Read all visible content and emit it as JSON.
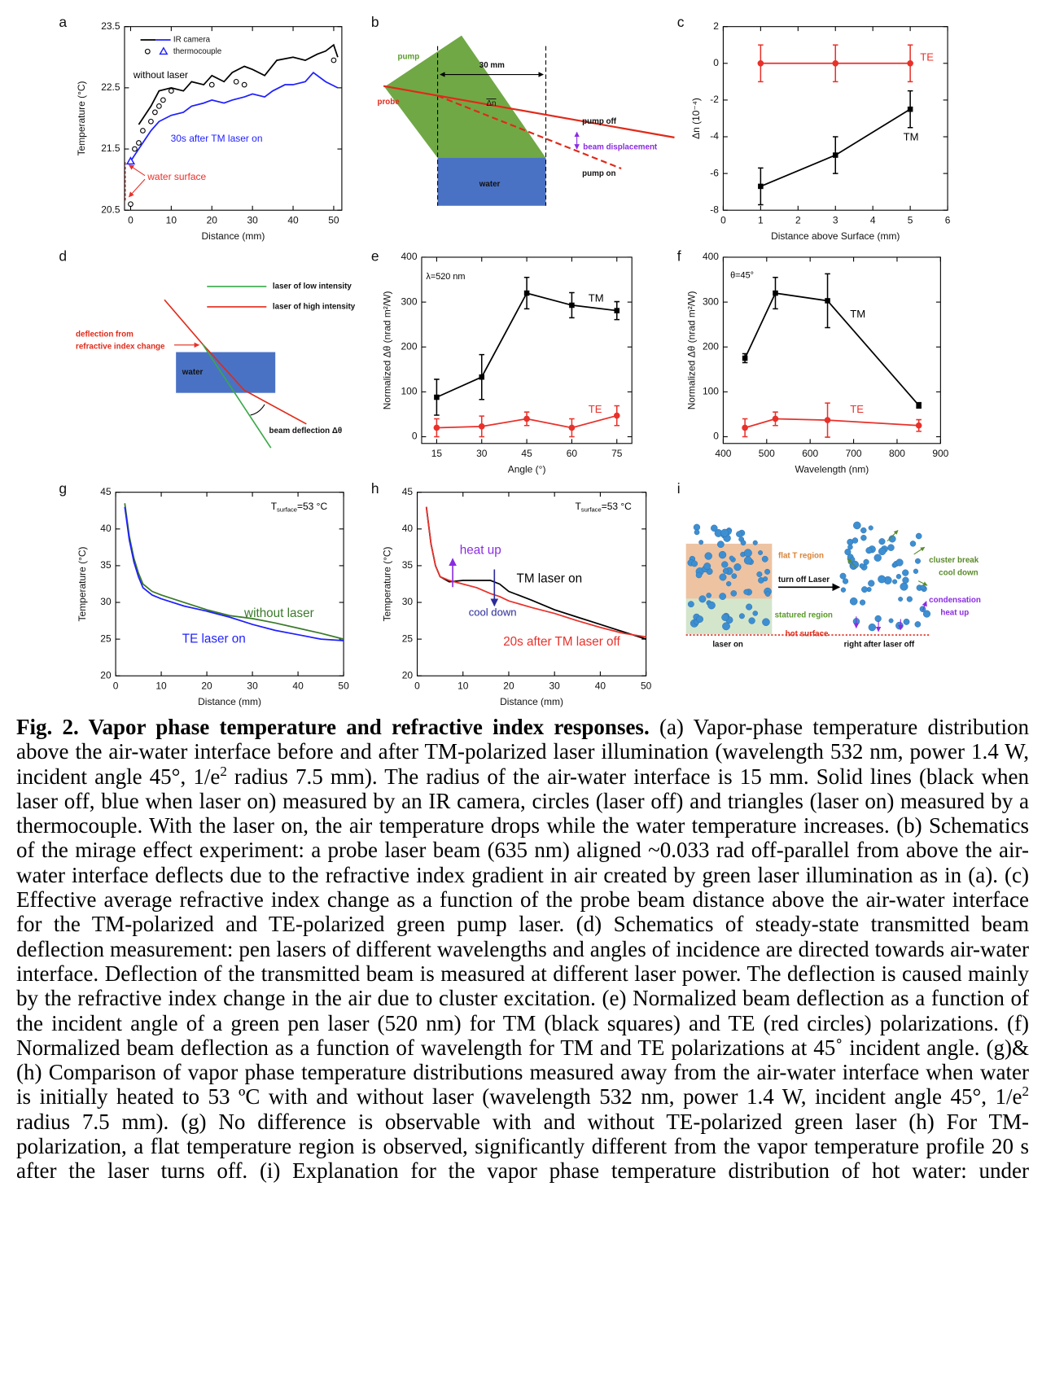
{
  "chart_data": [
    {
      "type": "line",
      "label": "a",
      "xlabel": "Distance (mm)",
      "ylabel": "Temperature (°C)",
      "xlim": [
        -1.5,
        52
      ],
      "ylim": [
        20.5,
        23.5
      ],
      "xticks": [
        0,
        10,
        20,
        30,
        40,
        50
      ],
      "yticks": [
        20.5,
        21.5,
        22.5,
        23.5
      ],
      "legend": [
        "IR camera",
        "thermocouple"
      ],
      "series": [
        {
          "color": "#000000",
          "line": true,
          "x": [
            2,
            3,
            5,
            7,
            10,
            13,
            15,
            18,
            20,
            23,
            25,
            28,
            30,
            33,
            36,
            40,
            43,
            46,
            48,
            50,
            51
          ],
          "values": [
            21.9,
            22.0,
            22.2,
            22.45,
            22.5,
            22.45,
            22.6,
            22.55,
            22.7,
            22.6,
            22.75,
            22.85,
            22.8,
            22.7,
            22.95,
            23.0,
            22.95,
            23.05,
            23.1,
            23.2,
            23.0
          ]
        },
        {
          "color": "#1f1fff",
          "line": true,
          "x": [
            0,
            1,
            3,
            5,
            7,
            10,
            13,
            15,
            18,
            20,
            23,
            25,
            28,
            30,
            33,
            35,
            38,
            40,
            43,
            45,
            48,
            51
          ],
          "values": [
            21.3,
            21.4,
            21.6,
            21.8,
            21.95,
            22.05,
            22.1,
            22.2,
            22.25,
            22.3,
            22.25,
            22.3,
            22.35,
            22.4,
            22.35,
            22.45,
            22.55,
            22.55,
            22.6,
            22.75,
            22.6,
            22.5
          ]
        },
        {
          "color": "#000000",
          "line": false,
          "marker": "circle",
          "x": [
            0,
            1,
            2,
            3,
            5,
            6,
            7,
            8,
            10,
            20,
            26,
            28,
            50
          ],
          "values": [
            20.6,
            21.5,
            21.6,
            21.8,
            21.95,
            22.1,
            22.2,
            22.3,
            22.45,
            22.55,
            22.6,
            22.55,
            22.95
          ]
        },
        {
          "color": "#1f1fff",
          "line": false,
          "marker": "triangle",
          "x": [
            0
          ],
          "values": [
            21.3
          ]
        }
      ],
      "annotations": [
        {
          "text": "without laser",
          "color": "#000000"
        },
        {
          "text": "30s after TM laser on",
          "color": "#1f1fff"
        },
        {
          "text": "water surface",
          "color": "#e8312a"
        }
      ]
    },
    {
      "type": "errorbar",
      "label": "c",
      "xlabel": "Distance above Surface (mm)",
      "ylabel": "Δn (10⁻⁴)",
      "xlim": [
        0,
        6
      ],
      "ylim": [
        -8,
        2
      ],
      "xticks": [
        0,
        1,
        2,
        3,
        4,
        5,
        6
      ],
      "yticks": [
        -8,
        -6,
        -4,
        -2,
        0,
        2
      ],
      "series": [
        {
          "name": "TE",
          "color": "#e8312a",
          "line": true,
          "marker": "circle",
          "x": [
            1,
            3,
            5
          ],
          "values": [
            0,
            0,
            0
          ],
          "errors": [
            1,
            1,
            1
          ]
        },
        {
          "name": "TM",
          "color": "#000000",
          "line": true,
          "marker": "square",
          "x": [
            1,
            3,
            5
          ],
          "values": [
            -6.7,
            -5,
            -2.5
          ],
          "errors": [
            1,
            1,
            1
          ]
        }
      ],
      "annotations": [
        {
          "text": "TE",
          "color": "#e8312a"
        },
        {
          "text": "TM",
          "color": "#000000"
        }
      ]
    },
    {
      "type": "errorbar",
      "label": "e",
      "xlabel": "Angle (°)",
      "ylabel": "Normalized Δθ (nrad m²/W)",
      "xlim": [
        10,
        80
      ],
      "ylim": [
        -15,
        400
      ],
      "xticks": [
        15,
        30,
        45,
        60,
        75
      ],
      "yticks": [
        0,
        100,
        200,
        300,
        400
      ],
      "series": [
        {
          "name": "TM",
          "color": "#000000",
          "line": true,
          "marker": "square",
          "x": [
            15,
            30,
            45,
            60,
            75
          ],
          "values": [
            88,
            133,
            320,
            293,
            281
          ],
          "errors": [
            40,
            50,
            35,
            28,
            20
          ]
        },
        {
          "name": "TE",
          "color": "#e8312a",
          "line": true,
          "marker": "circle",
          "x": [
            15,
            30,
            45,
            60,
            75
          ],
          "values": [
            20,
            23,
            40,
            20,
            47
          ],
          "errors": [
            20,
            23,
            15,
            20,
            22
          ]
        }
      ],
      "annotations": [
        {
          "text": "λ=520 nm",
          "color": "#000000"
        },
        {
          "text": "TM",
          "color": "#000000"
        },
        {
          "text": "TE",
          "color": "#e8312a"
        }
      ]
    },
    {
      "type": "errorbar",
      "label": "f",
      "xlabel": "Wavelength (nm)",
      "ylabel": "Normalized Δθ (nrad m²/W)",
      "xlim": [
        400,
        900
      ],
      "ylim": [
        -15,
        400
      ],
      "xticks": [
        400,
        500,
        600,
        700,
        800,
        900
      ],
      "yticks": [
        0,
        100,
        200,
        300,
        400
      ],
      "series": [
        {
          "name": "TM",
          "color": "#000000",
          "line": true,
          "marker": "square",
          "x": [
            450,
            520,
            640,
            850
          ],
          "values": [
            175,
            320,
            303,
            70
          ],
          "errors": [
            10,
            35,
            60,
            6
          ]
        },
        {
          "name": "TE",
          "color": "#e8312a",
          "line": true,
          "marker": "circle",
          "x": [
            450,
            520,
            640,
            850
          ],
          "values": [
            20,
            40,
            37,
            25
          ],
          "errors": [
            20,
            15,
            38,
            13
          ]
        }
      ],
      "annotations": [
        {
          "text": "θ=45°",
          "color": "#000000"
        },
        {
          "text": "TM",
          "color": "#000000"
        },
        {
          "text": "TE",
          "color": "#e8312a"
        }
      ]
    },
    {
      "type": "line",
      "label": "g",
      "xlabel": "Distance (mm)",
      "ylabel": "Temperature (°C)",
      "xlim": [
        0,
        50
      ],
      "ylim": [
        20,
        45
      ],
      "xticks": [
        0,
        10,
        20,
        30,
        40,
        50
      ],
      "yticks": [
        20,
        25,
        30,
        35,
        40,
        45
      ],
      "series": [
        {
          "name": "without laser",
          "color": "#3a7a2a",
          "line": true,
          "x": [
            2,
            3,
            4,
            5,
            6,
            8,
            10,
            15,
            20,
            25,
            30,
            35,
            40,
            45,
            50
          ],
          "values": [
            43.5,
            39,
            36,
            34,
            32.5,
            31.5,
            31,
            30,
            29,
            28.2,
            27.8,
            27.2,
            26.5,
            25.8,
            25
          ]
        },
        {
          "name": "TE laser on",
          "color": "#1f1fff",
          "line": true,
          "x": [
            2,
            3,
            4,
            5,
            6,
            8,
            10,
            15,
            20,
            25,
            30,
            35,
            40,
            45,
            50
          ],
          "values": [
            43,
            38.5,
            35.5,
            33.5,
            32,
            31,
            30.5,
            29.5,
            28.8,
            28,
            27,
            26.2,
            25.6,
            25,
            24.8
          ]
        }
      ],
      "annotations": [
        {
          "text": "T",
          "sub": "surface",
          "rest": "=53 °C",
          "color": "#000000"
        },
        {
          "text": "without laser",
          "color": "#3a7a2a"
        },
        {
          "text": "TE laser on",
          "color": "#1f1fff"
        }
      ]
    },
    {
      "type": "line",
      "label": "h",
      "xlabel": "Distance (mm)",
      "ylabel": "Temperature (°C)",
      "xlim": [
        0,
        50
      ],
      "ylim": [
        20,
        45
      ],
      "xticks": [
        0,
        10,
        20,
        30,
        40,
        50
      ],
      "yticks": [
        20,
        25,
        30,
        35,
        40,
        45
      ],
      "series": [
        {
          "name": "TM laser on",
          "color": "#000000",
          "line": true,
          "x": [
            2,
            3,
            4,
            5,
            7,
            10,
            13,
            16,
            18,
            20,
            25,
            30,
            35,
            40,
            45,
            50
          ],
          "values": [
            43,
            38,
            35,
            33.5,
            32.8,
            33,
            33,
            33,
            32.5,
            31.5,
            30.3,
            29,
            28,
            27,
            26,
            25
          ]
        },
        {
          "name": "20s after TM laser off",
          "color": "#e8312a",
          "line": true,
          "x": [
            2,
            3,
            4,
            5,
            7,
            10,
            13,
            16,
            18,
            20,
            25,
            30,
            35,
            40,
            45,
            50
          ],
          "values": [
            43,
            38,
            35,
            33.5,
            33,
            32.5,
            32,
            31.2,
            30.8,
            30.2,
            29.3,
            28.5,
            27.5,
            26.6,
            25.8,
            25.3
          ]
        }
      ],
      "annotations": [
        {
          "text": "T",
          "sub": "surface",
          "rest": "=53 °C",
          "color": "#000000"
        },
        {
          "text": "heat up",
          "color": "#8a2be2"
        },
        {
          "text": "TM laser on",
          "color": "#000000"
        },
        {
          "text": "cool down",
          "color": "#2b2b9a"
        },
        {
          "text": "20s after TM laser off",
          "color": "#e8312a"
        }
      ]
    }
  ],
  "diagrams": {
    "b": {
      "label": "b",
      "pump": "pump",
      "probe": "probe",
      "distance": "30 mm",
      "delta_n": "Δn",
      "pump_off": "pump off",
      "beam_displacement": "beam displacement",
      "pump_on": "pump on",
      "water": "water"
    },
    "d": {
      "label": "d",
      "low": "laser of low intensity",
      "high": "laser of high intensity",
      "deflection_1": "deflection from",
      "deflection_2": "refractive index change",
      "water": "water",
      "beam_deflection": "beam deflection Δθ"
    },
    "i": {
      "label": "i",
      "flat": "flat T region",
      "turn_off": "turn off Laser",
      "statured": "statured region",
      "hot_surface": "hot surface",
      "laser_on": "laser on",
      "after": "right after laser off",
      "break_1": "cluster break",
      "break_2": "cool down",
      "cond_1": "condensation",
      "cond_2": "heat up"
    }
  },
  "caption": [
    {
      "text": "Fig. 2. Vapor phase temperature and refractive index responses."
    },
    {
      "text": " (a) Vapor-phase temperature distribution above the air-water interface before and after TM-polarized laser illumination (wavelength 532 nm, power 1.4 W, incident angle 45°, 1/e"
    },
    {
      "text": "2"
    },
    {
      "text": " radius 7.5 mm). The radius of the air-water interface is 15 mm. Solid lines (black when laser off, blue when laser on) measured by an IR camera, circles (laser off) and triangles (laser on) measured by a thermocouple. With the laser on, the air temperature drops while the water temperature increases. (b) Schematics of the mirage effect experiment: a probe laser beam (635 nm) aligned ~0.033 rad off-parallel from above the air-water interface deflects due to the refractive index gradient in air created by green laser illumination as in (a). (c) Effective average refractive index change as a function of the probe beam distance above the air-water interface for the TM-polarized and TE-polarized green pump laser. (d) Schematics of steady-state transmitted beam deflection measurement: pen lasers of different wavelengths and angles of incidence are directed towards air-water interface. Deflection of the transmitted beam is measured at different laser power. The deflection is caused mainly by the refractive index change in the air due to cluster excitation. (e) Normalized beam deflection as a function of the incident angle of a green pen laser (520 nm) for TM (black squares) and TE (red circles) polarizations. (f) Normalized beam deflection as a function of wavelength for TM and TE polarizations at 45˚ incident angle. (g)&(h) Comparison of vapor phase temperature distributions measured away from the air-water interface when water is initially heated to 53 ºC with and without laser (wavelength 532 nm, power 1.4 W, incident angle 45°, 1/e"
    },
    {
      "text": "2"
    },
    {
      "text": " radius 7.5 mm). (g) No difference is observable with and without TE-polarized green laser (h) For TM-polarization, a flat temperature region is observed, significantly different from the vapor temperature profile 20 s after the laser turns off. (i) Explanation for the vapor phase temperature distribution of hot water: under"
    }
  ]
}
